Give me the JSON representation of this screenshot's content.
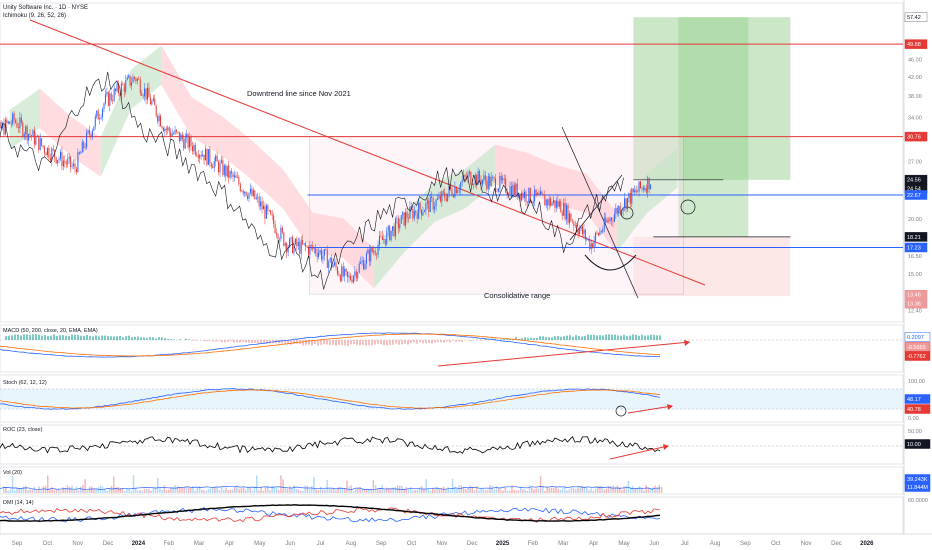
{
  "header": {
    "symbol_title": "Unity Software Inc. · 1D · NYSE",
    "ichimoku_label": "Ichimoku (9, 26, 52, 26)"
  },
  "annotations": {
    "downtrend": "Downtrend line since Nov 2021",
    "range": "Consolidative range"
  },
  "colors": {
    "candle_up": "#2962ff",
    "candle_down": "#e53935",
    "trend_line": "#e53935",
    "support_line": "#2962ff",
    "resistance_line": "#e53935",
    "cloud_bull": "#c8e6c9",
    "cloud_bear": "#ffcdd2",
    "target_zone": "#b9dfb4",
    "stop_zone": "#fde2e2",
    "macd_line": "#2962ff",
    "signal_line": "#ff6d00",
    "roc_line": "#000000",
    "dmi_plus": "#2962ff",
    "dmi_minus": "#e53935",
    "adx": "#000000"
  },
  "x_axis": {
    "labels": [
      "Sep",
      "Oct",
      "Nov",
      "Dec",
      "2024",
      "Feb",
      "Mar",
      "Apr",
      "May",
      "Jun",
      "Jul",
      "Aug",
      "Sep",
      "Oct",
      "Nov",
      "Dec",
      "2025",
      "Feb",
      "Mar",
      "Apr",
      "May",
      "Jun",
      "Jul",
      "Aug",
      "Sep",
      "Oct",
      "Nov",
      "Dec",
      "2026"
    ],
    "bold": [
      "2024",
      "2025",
      "2026"
    ]
  },
  "price_axis": {
    "ticks": [
      "46.00",
      "42.00",
      "38.00",
      "34.00",
      "27.00",
      "20.00",
      "16.50",
      "15.00",
      "12.40"
    ],
    "badges": [
      {
        "value": "57.42",
        "style": "gray"
      },
      {
        "value": "49.88",
        "style": "red"
      },
      {
        "value": "30.76",
        "style": "red"
      },
      {
        "value": "24.56",
        "style": "dark"
      },
      {
        "value": "24.54",
        "style": "dark"
      },
      {
        "value": "22.67",
        "style": "blue"
      },
      {
        "value": "18.21",
        "style": "dark"
      },
      {
        "value": "17.23",
        "style": "blue"
      },
      {
        "value": "13.46",
        "style": "pink"
      },
      {
        "value": "13.36",
        "style": "pink"
      }
    ]
  },
  "panels": {
    "macd": {
      "title": "MACD (50, 200, close, 20, EMA, EMA)",
      "values": [
        "0.2097",
        "-0.5665",
        "-0.7762"
      ]
    },
    "stoch": {
      "title": "Stoch (62, 12, 12)",
      "ticks": [
        "100.00",
        "0.00"
      ],
      "values": [
        "48.17",
        "40.78"
      ]
    },
    "roc": {
      "title": "ROC (23, close)",
      "ticks": [
        "50.00"
      ],
      "values": [
        "10.00"
      ]
    },
    "vol": {
      "title": "Vol (20)",
      "values": [
        "39.243K",
        "11.844M"
      ]
    },
    "dmi": {
      "title": "DMI (14, 14)",
      "ticks": [
        "60.0000"
      ]
    }
  },
  "chart_data": {
    "type": "candlestick",
    "title": "Unity Software Inc. · 1D · NYSE",
    "x_range": [
      "2023-08",
      "2026-01"
    ],
    "y_scale": "log",
    "levels": {
      "resistance_top": 49.88,
      "range_top": 30.76,
      "current_high": 24.56,
      "current_close": 24.54,
      "support_mid": 22.67,
      "stop": 18.21,
      "support_low": 17.23,
      "range_bottom": [
        13.46,
        13.36
      ],
      "target": 57.42
    },
    "price_path": [
      [
        "2023-08",
        30.0
      ],
      [
        "2023-09",
        33.5
      ],
      [
        "2023-10",
        29.0
      ],
      [
        "2023-11",
        26.0
      ],
      [
        "2023-12",
        37.0
      ],
      [
        "2024-01",
        42.0
      ],
      [
        "2024-02",
        32.0
      ],
      [
        "2024-03",
        29.0
      ],
      [
        "2024-04",
        25.5
      ],
      [
        "2024-05",
        22.0
      ],
      [
        "2024-06",
        17.5
      ],
      [
        "2024-07",
        17.0
      ],
      [
        "2024-08",
        14.5
      ],
      [
        "2024-09",
        17.5
      ],
      [
        "2024-10",
        20.5
      ],
      [
        "2024-11",
        22.0
      ],
      [
        "2024-12",
        25.0
      ],
      [
        "2025-01",
        24.0
      ],
      [
        "2025-02",
        22.5
      ],
      [
        "2025-03",
        21.5
      ],
      [
        "2025-04",
        17.5
      ],
      [
        "2025-05",
        21.5
      ],
      [
        "2025-06",
        24.54
      ]
    ],
    "annotations": [
      "Downtrend line since Nov 2021",
      "Consolidative range"
    ]
  }
}
